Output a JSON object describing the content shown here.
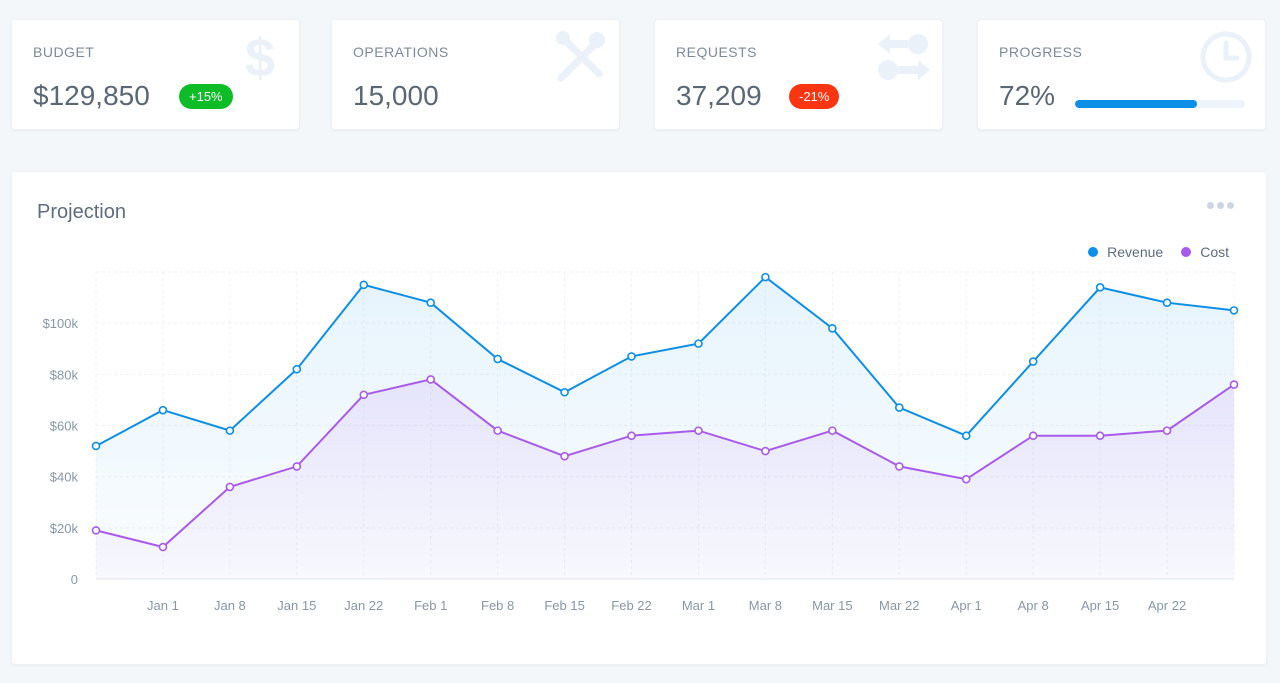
{
  "kpis": {
    "budget": {
      "label": "BUDGET",
      "value": "$129,850",
      "badge": "+15%",
      "icon": "dollar-icon"
    },
    "operations": {
      "label": "OPERATIONS",
      "value": "15,000",
      "icon": "tools-icon"
    },
    "requests": {
      "label": "REQUESTS",
      "value": "37,209",
      "badge": "-21%",
      "icon": "transfer-icon"
    },
    "progress": {
      "label": "PROGRESS",
      "value": "72%",
      "percent": 72,
      "icon": "clock-icon"
    }
  },
  "colors": {
    "revenue": "#0d8ee7",
    "cost": "#a85bea",
    "badge_up": "#0ebc28",
    "badge_down": "#fa3512"
  },
  "chart": {
    "title": "Projection",
    "menu_icon": "more-horizontal-icon"
  },
  "chart_data": {
    "type": "line",
    "title": "Projection",
    "legend_position": "top-right",
    "ylim": [
      0,
      120000
    ],
    "y_ticks": [
      0,
      20000,
      40000,
      60000,
      80000,
      100000
    ],
    "y_tick_labels": [
      "0",
      "$20k",
      "$40k",
      "$60k",
      "$80k",
      "$100k"
    ],
    "x_tick_labels": [
      "Jan 1",
      "Jan 8",
      "Jan 15",
      "Jan 22",
      "Feb 1",
      "Feb 8",
      "Feb 15",
      "Feb 22",
      "Mar 1",
      "Mar 8",
      "Mar 15",
      "Mar 22",
      "Apr 1",
      "Apr 8",
      "Apr 15",
      "Apr 22"
    ],
    "point_count": 18,
    "series": [
      {
        "name": "Revenue",
        "values": [
          52000,
          66000,
          58000,
          82000,
          115000,
          108000,
          86000,
          73000,
          87000,
          92000,
          118000,
          98000,
          67000,
          56000,
          85000,
          114000,
          108000,
          105000
        ]
      },
      {
        "name": "Cost",
        "values": [
          19000,
          12500,
          36000,
          44000,
          72000,
          78000,
          58000,
          48000,
          56000,
          58000,
          50000,
          58000,
          44000,
          39000,
          56000,
          56000,
          58000,
          76000
        ]
      }
    ]
  }
}
